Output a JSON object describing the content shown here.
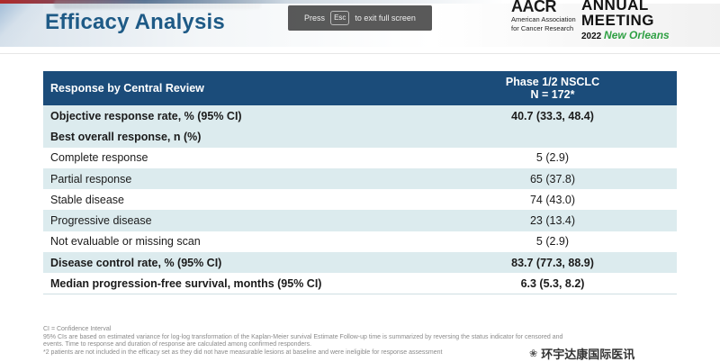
{
  "slide": {
    "title": "Efficacy Analysis"
  },
  "fullscreen": {
    "prefix": "Press",
    "key": "Esc",
    "suffix": "to exit full screen"
  },
  "logo": {
    "mark": "AACR",
    "org_line1": "American Association",
    "org_line2": "for Cancer Research",
    "meeting1": "ANNUAL",
    "meeting2": "MEETING",
    "year": "2022",
    "city": "New Orleans"
  },
  "table": {
    "header": {
      "col1": "Response by Central Review",
      "col2_line1": "Phase 1/2 NSCLC",
      "col2_line2": "N = 172*"
    },
    "rows": [
      {
        "label": "Objective response rate, % (95% CI)",
        "value": "40.7 (33.3, 48.4)"
      },
      {
        "label": "Best overall response, n (%)",
        "value": ""
      },
      {
        "label": "Complete response",
        "value": "5 (2.9)"
      },
      {
        "label": "Partial response",
        "value": "65 (37.8)"
      },
      {
        "label": "Stable disease",
        "value": "74 (43.0)"
      },
      {
        "label": "Progressive disease",
        "value": "23 (13.4)"
      },
      {
        "label": "Not evaluable or missing scan",
        "value": "5 (2.9)"
      },
      {
        "label": "Disease control rate, % (95% CI)",
        "value": "83.7 (77.3, 88.9)"
      },
      {
        "label": "Median progression-free survival, months (95% CI)",
        "value": "6.3 (5.3, 8.2)"
      }
    ]
  },
  "footnotes": {
    "line1": "CI = Confidence Interval",
    "line2": "95% CIs are based on estimated variance for log-log transformation of the Kaplan-Meier survival Estimate Follow-up time is summarized by reversing the status indicator for censored and",
    "line3": "events. Time to response and duration of response are calculated among confirmed responders.",
    "line4": "*2 patients are not included in the efficacy set as they did not have measurable lesions at baseline and were ineligible for response assessment"
  },
  "watermark": {
    "text": "环宇达康国际医讯"
  }
}
